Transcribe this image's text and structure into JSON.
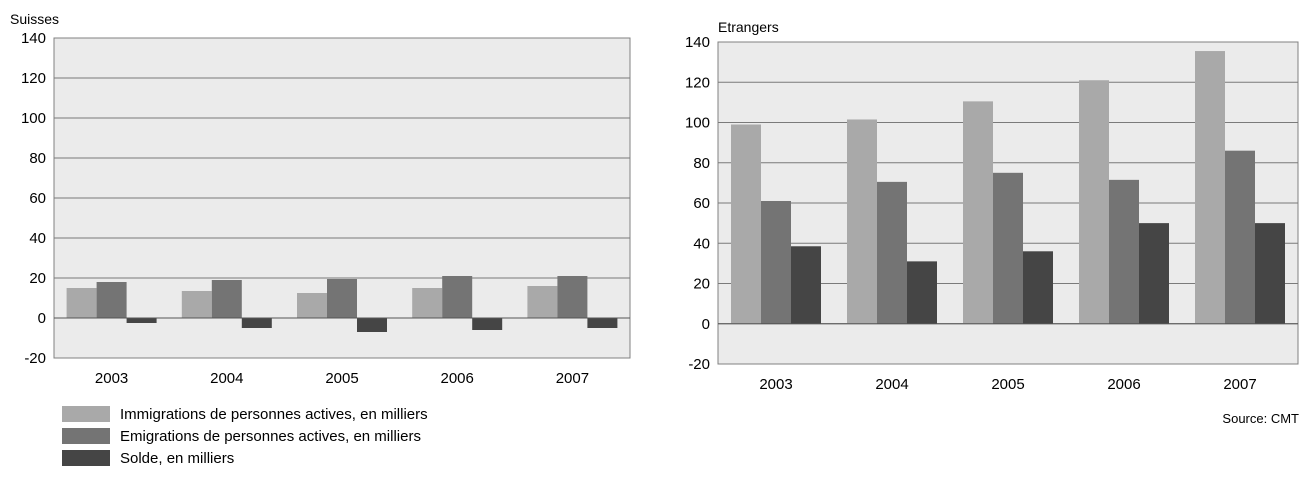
{
  "chart_data": [
    {
      "type": "bar",
      "title": "Suisses",
      "categories": [
        "2003",
        "2004",
        "2005",
        "2006",
        "2007"
      ],
      "series": [
        {
          "name": "Immigrations de personnes actives, en milliers",
          "values": [
            15,
            13.5,
            12.5,
            15,
            16
          ]
        },
        {
          "name": "Emigrations de personnes actives, en milliers",
          "values": [
            18,
            19,
            19.5,
            21,
            21
          ]
        },
        {
          "name": "Solde, en milliers",
          "values": [
            -2.5,
            -5,
            -7,
            -6,
            -5
          ]
        }
      ],
      "ylim": [
        -20,
        140
      ],
      "yticks": [
        "140",
        "120",
        "100",
        "80",
        "60",
        "40",
        "20",
        "0",
        "-20"
      ],
      "grid": true
    },
    {
      "type": "bar",
      "title": "Etrangers",
      "categories": [
        "2003",
        "2004",
        "2005",
        "2006",
        "2007"
      ],
      "series": [
        {
          "name": "Immigrations de personnes actives, en milliers",
          "values": [
            99,
            101.5,
            110.5,
            121,
            135.5
          ]
        },
        {
          "name": "Emigrations de personnes actives, en milliers",
          "values": [
            61,
            70.5,
            75,
            71.5,
            86
          ]
        },
        {
          "name": "Solde, en milliers",
          "values": [
            38.5,
            31,
            36,
            50,
            50
          ]
        }
      ],
      "ylim": [
        -20,
        140
      ],
      "yticks": [
        "140",
        "120",
        "100",
        "80",
        "60",
        "40",
        "20",
        "0",
        "-20"
      ],
      "grid": true
    }
  ],
  "colors": {
    "immigrations": "#a9a9a9",
    "emigrations": "#747474",
    "solde": "#454545",
    "plot_background": "#ebebeb",
    "grid": "#7a7a7a"
  },
  "legend": {
    "items": [
      {
        "label": "Immigrations de personnes actives, en milliers",
        "color": "#a9a9a9"
      },
      {
        "label": "Emigrations de personnes actives, en milliers",
        "color": "#747474"
      },
      {
        "label": "Solde, en milliers",
        "color": "#454545"
      }
    ]
  },
  "source": "Source: CMT"
}
